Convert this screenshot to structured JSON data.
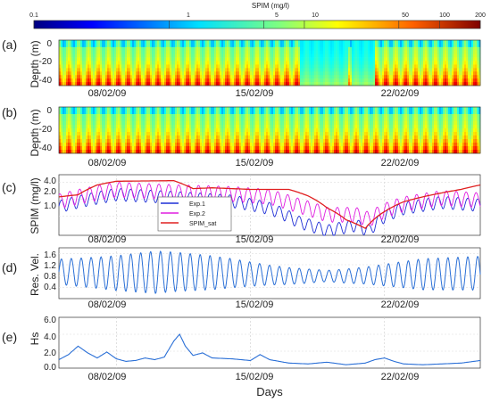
{
  "colorbar": {
    "title": "SPIM (mg/l)",
    "scale": "log",
    "range": [
      0.1,
      200
    ],
    "ticks": [
      "0.1",
      "1",
      "5",
      "10",
      "50",
      "100",
      "200"
    ],
    "tick_values": [
      0.1,
      1,
      5,
      10,
      50,
      100,
      200
    ]
  },
  "colors": {
    "exp1": "#1f2fd6",
    "exp2": "#e01ee0",
    "spim_sat": "#e02020",
    "res_vel": "#2a6fd6",
    "hs": "#2a6fd6"
  },
  "x_axis": {
    "start_date": "05/02/09",
    "end_date": "27/02/09",
    "tick_labels": [
      "08/02/09",
      "15/02/09",
      "22/02/09"
    ],
    "tick_days": [
      3,
      10,
      17
    ],
    "label": "Days"
  },
  "panels": {
    "a": {
      "tag": "(a)",
      "ylabel": "Depth (m)",
      "yticks": [
        "0",
        "-20",
        "-40"
      ]
    },
    "b": {
      "tag": "(b)",
      "ylabel": "Depth (m)",
      "yticks": [
        "0",
        "-20",
        "-40"
      ]
    },
    "c": {
      "tag": "(c)",
      "ylabel": "SPIM (mg/l)",
      "yticks": [
        "4.0",
        "2.0",
        "1.0"
      ]
    },
    "d": {
      "tag": "(d)",
      "ylabel": "Res. Vel.",
      "yticks": [
        "1.6",
        "1.2",
        "0.8",
        "0.4"
      ]
    },
    "e": {
      "tag": "(e)",
      "ylabel": "Hs",
      "yticks": [
        "6.0",
        "4.0",
        "2.0",
        "0.0"
      ]
    }
  },
  "legend": [
    "Exp.1",
    "Exp.2",
    "SPIM_sat"
  ],
  "chart_data": [
    {
      "type": "heatmap",
      "panel": "a",
      "xlabel": "",
      "ylabel": "Depth (m)",
      "ylim": [
        -45,
        2
      ],
      "color_range": [
        0.1,
        200
      ],
      "x_unit": "days since 05/02/09",
      "notes": "tidal-period banding; low-concentration band near x 12.6-16.5"
    },
    {
      "type": "heatmap",
      "panel": "b",
      "xlabel": "",
      "ylabel": "Depth (m)",
      "ylim": [
        -45,
        2
      ],
      "color_range": [
        0.1,
        200
      ]
    },
    {
      "type": "line",
      "panel": "c",
      "ylabel": "SPIM (mg/l)",
      "yscale": "log",
      "ylim": [
        0.45,
        5.5
      ],
      "xlim": [
        0,
        22
      ],
      "series": [
        {
          "name": "Exp.1",
          "color": "#1f2fd6",
          "kind": "tidal",
          "base": [
            [
              0,
              1.5
            ],
            [
              3,
              2.5
            ],
            [
              6,
              2.2
            ],
            [
              9,
              1.9
            ],
            [
              11,
              1.4
            ],
            [
              12.5,
              0.8
            ],
            [
              14,
              0.55
            ],
            [
              15.5,
              0.7
            ],
            [
              16.2,
              0.55
            ],
            [
              17,
              1.0
            ],
            [
              18,
              1.4
            ],
            [
              20,
              1.8
            ],
            [
              22,
              1.6
            ]
          ],
          "amp": 0.25
        },
        {
          "name": "Exp.2",
          "color": "#e01ee0",
          "kind": "tidal",
          "base": [
            [
              0,
              1.9
            ],
            [
              3,
              3.1
            ],
            [
              6,
              2.8
            ],
            [
              9,
              2.6
            ],
            [
              11,
              2.3
            ],
            [
              12.5,
              1.6
            ],
            [
              14,
              1.1
            ],
            [
              15.5,
              1.1
            ],
            [
              16.2,
              0.9
            ],
            [
              17,
              1.3
            ],
            [
              18,
              1.7
            ],
            [
              20,
              2.2
            ],
            [
              22,
              2.0
            ]
          ],
          "amp": 0.3
        },
        {
          "name": "SPIM_sat",
          "color": "#e02020",
          "kind": "smooth",
          "points": [
            [
              0,
              2.2
            ],
            [
              1,
              2.4
            ],
            [
              2,
              3.6
            ],
            [
              3,
              4.2
            ],
            [
              6,
              4.3
            ],
            [
              7,
              3.1
            ],
            [
              8,
              3.2
            ],
            [
              10,
              3.0
            ],
            [
              12,
              3.0
            ],
            [
              13,
              2.3
            ],
            [
              14,
              1.4
            ],
            [
              15,
              0.85
            ],
            [
              16,
              0.6
            ],
            [
              17,
              1.2
            ],
            [
              18,
              1.8
            ],
            [
              20,
              2.6
            ],
            [
              21,
              3.0
            ],
            [
              22,
              3.6
            ]
          ]
        }
      ]
    },
    {
      "type": "line",
      "panel": "d",
      "ylabel": "Res. Vel.",
      "ylim": [
        0,
        1.8
      ],
      "xlim": [
        0,
        22
      ],
      "series": [
        {
          "name": "Res. Vel.",
          "color": "#2a6fd6",
          "kind": "tidal",
          "base": [
            [
              0,
              0.95
            ],
            [
              3,
              0.9
            ],
            [
              6,
              0.95
            ],
            [
              9,
              0.9
            ],
            [
              12,
              0.8
            ],
            [
              15,
              0.8
            ],
            [
              18,
              0.85
            ],
            [
              22,
              0.9
            ]
          ],
          "amp_envelope": [
            [
              0,
              0.45
            ],
            [
              2,
              0.55
            ],
            [
              5,
              0.75
            ],
            [
              8,
              0.6
            ],
            [
              11,
              0.35
            ],
            [
              14,
              0.2
            ],
            [
              16,
              0.3
            ],
            [
              19,
              0.55
            ],
            [
              22,
              0.6
            ]
          ]
        }
      ]
    },
    {
      "type": "line",
      "panel": "e",
      "ylabel": "Hs",
      "ylim": [
        0,
        6
      ],
      "xlim": [
        0,
        22
      ],
      "series": [
        {
          "name": "Hs",
          "color": "#2a6fd6",
          "kind": "smooth",
          "points": [
            [
              0,
              1.0
            ],
            [
              0.5,
              1.6
            ],
            [
              1,
              2.6
            ],
            [
              1.5,
              1.8
            ],
            [
              2,
              1.2
            ],
            [
              2.5,
              1.9
            ],
            [
              3,
              1.1
            ],
            [
              3.5,
              0.8
            ],
            [
              4,
              0.9
            ],
            [
              4.5,
              1.2
            ],
            [
              5,
              1.0
            ],
            [
              5.5,
              1.3
            ],
            [
              6,
              3.2
            ],
            [
              6.3,
              4.0
            ],
            [
              6.6,
              2.6
            ],
            [
              7,
              1.5
            ],
            [
              7.5,
              1.8
            ],
            [
              8,
              1.2
            ],
            [
              9,
              1.1
            ],
            [
              10,
              0.9
            ],
            [
              10.5,
              1.6
            ],
            [
              11,
              1.0
            ],
            [
              12,
              0.6
            ],
            [
              13,
              0.5
            ],
            [
              14,
              0.7
            ],
            [
              15,
              0.4
            ],
            [
              16,
              0.6
            ],
            [
              16.5,
              1.0
            ],
            [
              17,
              1.2
            ],
            [
              17.5,
              0.8
            ],
            [
              18,
              0.5
            ],
            [
              19,
              0.4
            ],
            [
              20,
              0.5
            ],
            [
              21,
              0.6
            ],
            [
              22,
              0.9
            ]
          ]
        }
      ]
    }
  ]
}
